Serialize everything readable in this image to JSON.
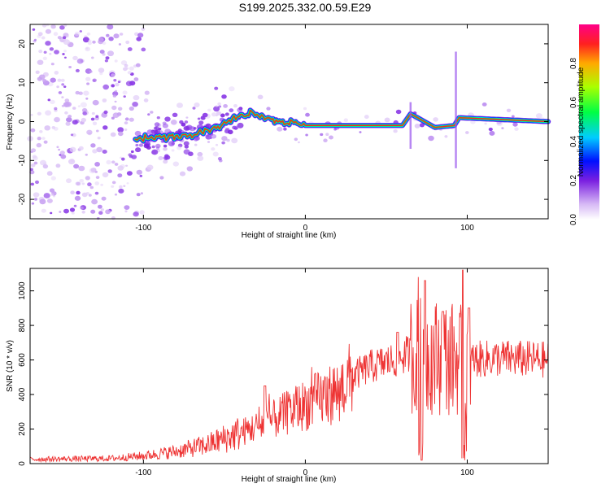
{
  "title": "S199.2025.332.00.59.E29",
  "chart_data": [
    {
      "type": "heatmap",
      "xlabel": "Height of straight line (km)",
      "ylabel": "Frequency (Hz)",
      "xlim": [
        -170,
        150
      ],
      "ylim": [
        -25,
        25
      ],
      "xticks": [
        -100,
        0,
        100
      ],
      "yticks": [
        -20,
        -10,
        0,
        10,
        20
      ],
      "colorbar": {
        "label": "Normalized spectral amplitude",
        "range": [
          0,
          1
        ],
        "ticks": [
          "0.0",
          "0.2",
          "0.4",
          "0.6",
          "0.8"
        ]
      },
      "ridge": [
        {
          "x": -100,
          "y": -4.5
        },
        {
          "x": -75,
          "y": -3.5
        },
        {
          "x": -55,
          "y": -1.5
        },
        {
          "x": -40,
          "y": 1.5
        },
        {
          "x": -33,
          "y": 2.5
        },
        {
          "x": -20,
          "y": 0.5
        },
        {
          "x": 0,
          "y": -1
        },
        {
          "x": 60,
          "y": -1
        },
        {
          "x": 65,
          "y": 2
        },
        {
          "x": 80,
          "y": -1.5
        },
        {
          "x": 92,
          "y": -1
        },
        {
          "x": 95,
          "y": 1
        },
        {
          "x": 150,
          "y": 0
        }
      ]
    },
    {
      "type": "line",
      "xlabel": "Height of straight line (km)",
      "ylabel": "SNR (10 * v/v)",
      "xlim": [
        -170,
        150
      ],
      "ylim": [
        0,
        1130
      ],
      "xticks": [
        -100,
        0,
        100
      ],
      "yticks": [
        0,
        200,
        400,
        600,
        800,
        1000
      ],
      "color": "#ee3333",
      "envelope": [
        {
          "x": -170,
          "y": 25
        },
        {
          "x": -120,
          "y": 30
        },
        {
          "x": -100,
          "y": 45
        },
        {
          "x": -80,
          "y": 70
        },
        {
          "x": -60,
          "y": 110
        },
        {
          "x": -40,
          "y": 180
        },
        {
          "x": -25,
          "y": 230
        },
        {
          "x": -10,
          "y": 300
        },
        {
          "x": 0,
          "y": 340
        },
        {
          "x": 20,
          "y": 420
        },
        {
          "x": 30,
          "y": 510
        },
        {
          "x": 40,
          "y": 560
        },
        {
          "x": 55,
          "y": 600
        },
        {
          "x": 65,
          "y": 640
        },
        {
          "x": 80,
          "y": 620
        },
        {
          "x": 100,
          "y": 600
        },
        {
          "x": 120,
          "y": 610
        },
        {
          "x": 150,
          "y": 600
        }
      ],
      "spikes": [
        {
          "x": -25,
          "y": 450
        },
        {
          "x": 57,
          "y": 760
        },
        {
          "x": 70,
          "y": 1080
        },
        {
          "x": 72,
          "y": 20
        },
        {
          "x": 74,
          "y": 1060
        },
        {
          "x": 85,
          "y": 880
        },
        {
          "x": 97,
          "y": 1120
        },
        {
          "x": 98,
          "y": 20
        },
        {
          "x": 101,
          "y": 900
        }
      ]
    }
  ]
}
